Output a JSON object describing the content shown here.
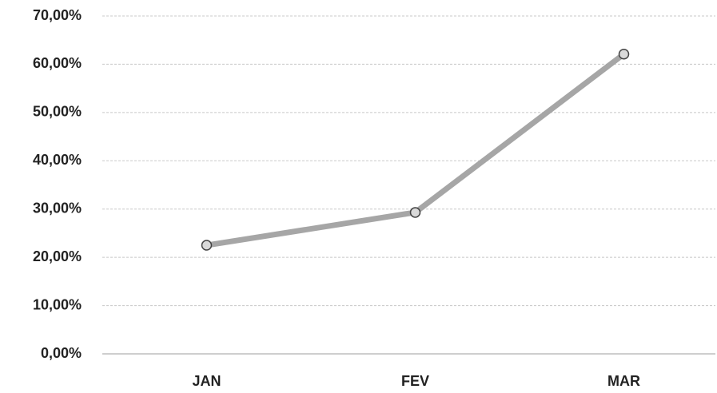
{
  "chart_data": {
    "type": "line",
    "categories": [
      "JAN",
      "FEV",
      "MAR"
    ],
    "series": [
      {
        "name": null,
        "color": "#a6a6a6",
        "values": [
          22.5,
          29.3,
          62.1
        ]
      }
    ],
    "ylim": [
      0,
      70
    ],
    "yticks": [
      {
        "value": 0,
        "label": "0,00%"
      },
      {
        "value": 10,
        "label": "10,00%"
      },
      {
        "value": 20,
        "label": "20,00%"
      },
      {
        "value": 30,
        "label": "30,00%"
      },
      {
        "value": 40,
        "label": "40,00%"
      },
      {
        "value": 50,
        "label": "50,00%"
      },
      {
        "value": 60,
        "label": "60,00%"
      },
      {
        "value": 70,
        "label": "70,00%"
      }
    ],
    "grid": true
  }
}
